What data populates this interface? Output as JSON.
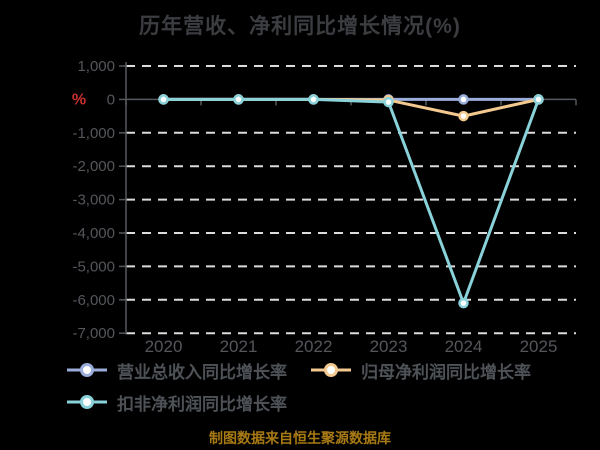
{
  "title": "历年营收、净利同比增长情况(%)",
  "y_axis_unit": "%",
  "footer": "制图数据来自恒生聚源数据库",
  "colors": {
    "background": "#000000",
    "title_text": "#3b3d41",
    "axis_line": "#55585c",
    "axis_label": "#54565b",
    "gridline": "#dcdcdc",
    "unit_label": "#c9302c",
    "legend_text": "#4e5257",
    "marker_fill": "#ffffff"
  },
  "chart_data": {
    "type": "line",
    "categories": [
      "2020",
      "2021",
      "2022",
      "2023",
      "2024",
      "2025"
    ],
    "series": [
      {
        "name": "营业总收入同比增长率",
        "color": "#9badda",
        "values": [
          0,
          0,
          0,
          0,
          0,
          0
        ]
      },
      {
        "name": "归母净利润同比增长率",
        "color": "#f3c98f",
        "values": [
          0,
          0,
          0,
          -20,
          -500,
          0
        ]
      },
      {
        "name": "扣非净利润同比增长率",
        "color": "#8ad2da",
        "values": [
          0,
          0,
          0,
          -80,
          -6100,
          0
        ]
      }
    ],
    "ylim": [
      -7000,
      1000
    ],
    "ytick_step": 1000,
    "ytick_labels": [
      "1,000",
      "0",
      "-1,000",
      "-2,000",
      "-3,000",
      "-4,000",
      "-5,000",
      "-6,000",
      "-7,000"
    ],
    "grid": "dashed horizontal",
    "legend_position": "bottom"
  }
}
